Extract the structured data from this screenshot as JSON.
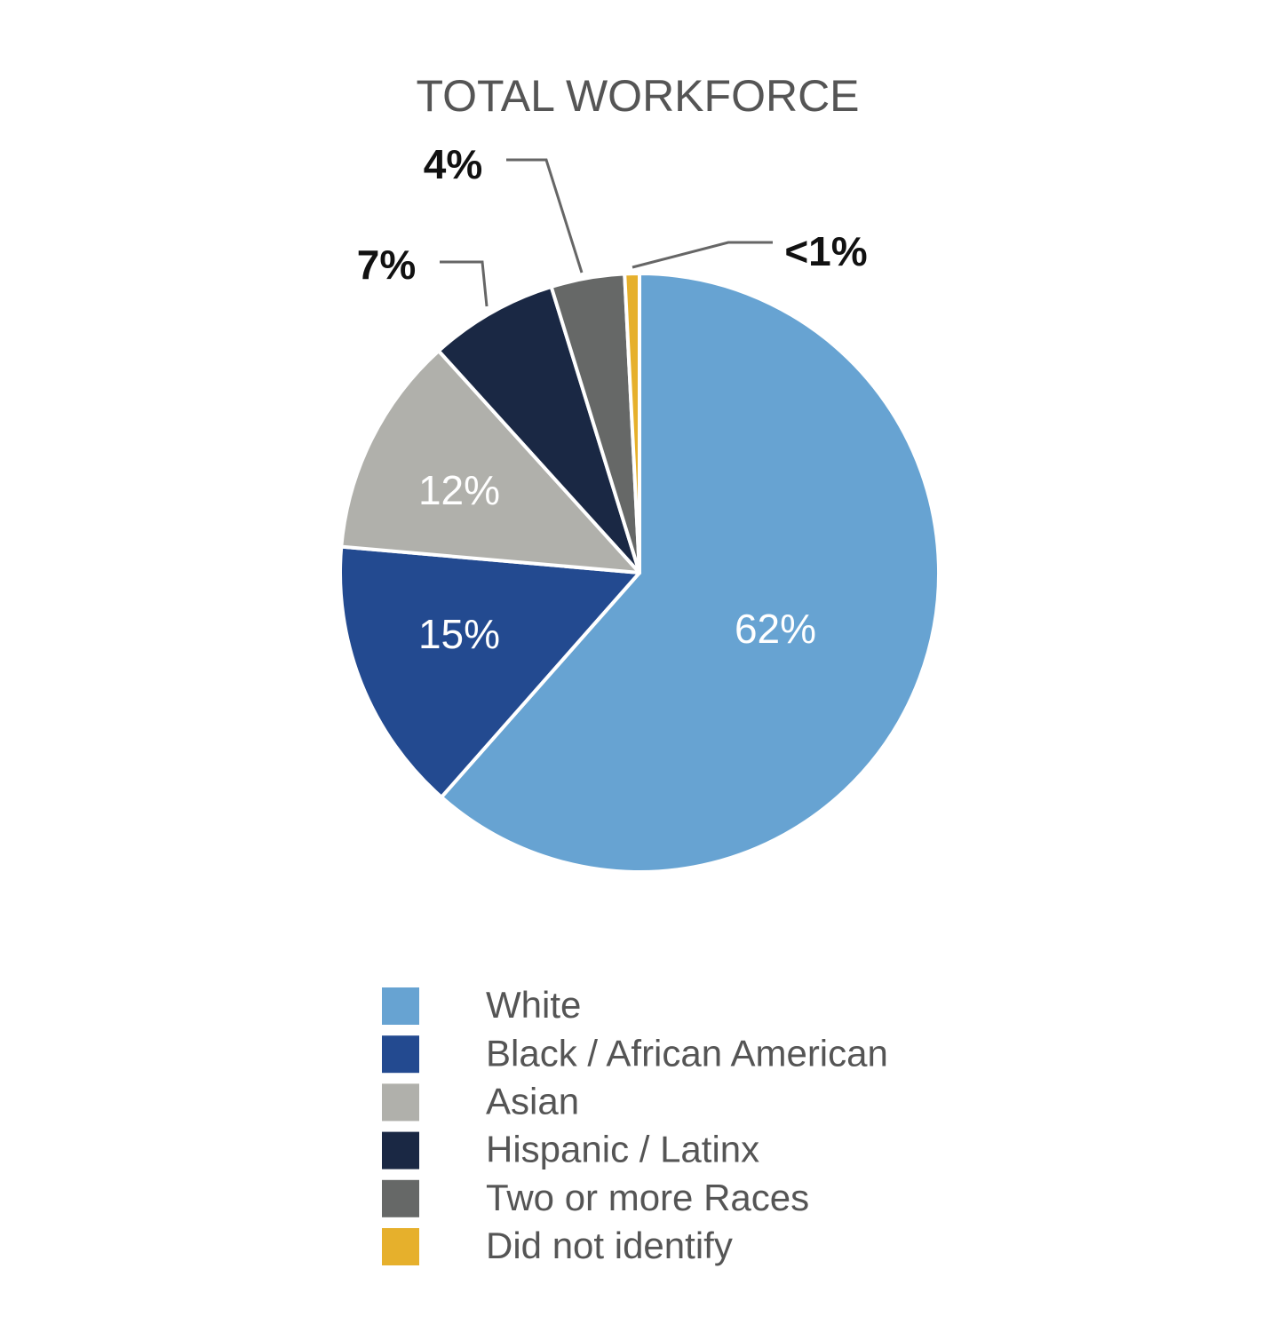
{
  "chart_data": {
    "type": "pie",
    "title": "TOTAL WORKFORCE",
    "categories": [
      "White",
      "Black / African American",
      "Asian",
      "Hispanic / Latinx",
      "Two or more Races",
      "Did not identify"
    ],
    "values": [
      62,
      15,
      12,
      7,
      4,
      0.8
    ],
    "value_labels": [
      "62%",
      "15%",
      "12%",
      "7%",
      "4%",
      "<1%"
    ],
    "colors": [
      "#67a3d2",
      "#234a90",
      "#b0b0ab",
      "#1a2844",
      "#666867",
      "#e6b02c"
    ]
  }
}
